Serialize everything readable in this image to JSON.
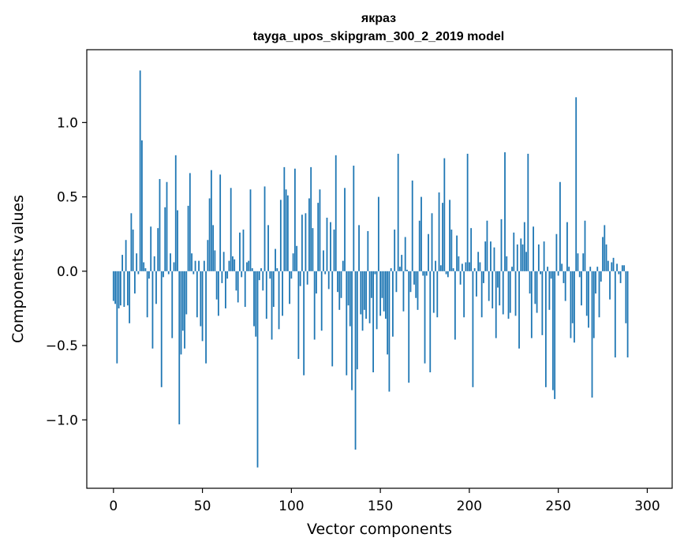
{
  "chart_data": {
    "type": "bar",
    "title": "якраз",
    "subtitle": "tayga_upos_skipgram_300_2_2019 model",
    "xlabel": "Vector components",
    "ylabel": "Components values",
    "xlim": [
      -15,
      314
    ],
    "ylim": [
      -1.46,
      1.49
    ],
    "xticks": [
      0,
      50,
      100,
      150,
      200,
      250,
      300
    ],
    "yticks": [
      -1.0,
      -0.5,
      0.0,
      0.5,
      1.0
    ],
    "ytick_labels": [
      "−1.0",
      "−0.5",
      "0.0",
      "0.5",
      "1.0"
    ],
    "bar_color": "#1f77b4",
    "values": [
      -0.2,
      -0.22,
      -0.62,
      -0.25,
      -0.23,
      0.11,
      -0.24,
      0.21,
      -0.23,
      -0.35,
      0.39,
      0.28,
      -0.15,
      0.12,
      -0.02,
      1.35,
      0.88,
      0.06,
      0.02,
      -0.31,
      -0.05,
      0.3,
      -0.52,
      0.1,
      -0.22,
      0.29,
      0.62,
      -0.78,
      -0.04,
      0.43,
      0.6,
      -0.02,
      0.12,
      -0.45,
      0.06,
      0.78,
      0.41,
      -1.03,
      -0.56,
      -0.4,
      -0.52,
      -0.29,
      0.44,
      0.66,
      0.12,
      -0.02,
      0.07,
      -0.31,
      0.07,
      -0.37,
      -0.47,
      0.07,
      -0.62,
      0.21,
      0.49,
      0.68,
      0.31,
      0.14,
      -0.19,
      -0.3,
      0.65,
      -0.08,
      0.13,
      -0.25,
      -0.05,
      0.07,
      0.56,
      0.1,
      0.08,
      -0.13,
      -0.21,
      0.26,
      -0.04,
      0.28,
      -0.24,
      0.06,
      0.07,
      0.55,
      0.02,
      -0.37,
      -0.44,
      -1.32,
      -0.06,
      0.02,
      -0.13,
      0.57,
      -0.32,
      0.31,
      -0.05,
      -0.46,
      -0.24,
      0.15,
      0.02,
      -0.39,
      0.48,
      -0.3,
      0.7,
      0.55,
      0.51,
      -0.22,
      -0.05,
      0.12,
      0.69,
      0.17,
      -0.59,
      -0.1,
      0.38,
      -0.7,
      0.39,
      -0.09,
      0.49,
      0.7,
      0.29,
      -0.46,
      -0.15,
      0.46,
      0.55,
      -0.4,
      0.14,
      -0.02,
      0.36,
      -0.12,
      0.33,
      -0.64,
      0.28,
      0.78,
      -0.14,
      -0.26,
      -0.18,
      0.07,
      0.56,
      -0.7,
      -0.23,
      -0.37,
      -0.8,
      0.71,
      -1.2,
      -0.66,
      0.31,
      -0.29,
      -0.4,
      -0.26,
      -0.32,
      0.27,
      -0.35,
      -0.18,
      -0.68,
      -0.02,
      -0.39,
      0.5,
      -0.3,
      -0.18,
      -0.27,
      -0.32,
      -0.56,
      -0.81,
      0.02,
      -0.44,
      0.28,
      -0.14,
      0.79,
      0.03,
      0.11,
      -0.27,
      0.23,
      0.01,
      -0.75,
      -0.14,
      0.61,
      -0.09,
      -0.18,
      -0.26,
      0.34,
      0.5,
      -0.03,
      -0.62,
      -0.03,
      0.25,
      -0.68,
      0.39,
      -0.28,
      0.07,
      -0.31,
      0.53,
      0.04,
      0.46,
      0.76,
      -0.02,
      -0.04,
      0.48,
      0.28,
      0.02,
      -0.46,
      0.24,
      0.1,
      -0.09,
      0.05,
      -0.31,
      0.06,
      0.79,
      0.06,
      0.29,
      -0.78,
      0.02,
      -0.17,
      0.13,
      0.06,
      -0.31,
      -0.08,
      0.2,
      0.34,
      -0.2,
      0.2,
      -0.25,
      0.16,
      -0.45,
      -0.11,
      -0.23,
      0.35,
      -0.29,
      0.8,
      0.1,
      -0.32,
      -0.28,
      0.03,
      0.26,
      -0.3,
      0.18,
      -0.52,
      0.22,
      0.18,
      0.33,
      0.13,
      0.79,
      -0.15,
      -0.45,
      0.3,
      -0.22,
      -0.28,
      0.18,
      -0.02,
      -0.43,
      0.2,
      -0.78,
      0.03,
      -0.26,
      -0.05,
      -0.8,
      -0.86,
      0.25,
      -0.03,
      0.6,
      0.05,
      -0.08,
      -0.2,
      0.33,
      0.03,
      -0.45,
      -0.35,
      -0.48,
      1.17,
      0.12,
      -0.04,
      -0.23,
      0.12,
      0.34,
      -0.3,
      -0.38,
      0.03,
      -0.85,
      -0.45,
      -0.15,
      0.03,
      -0.31,
      -0.07,
      0.23,
      0.31,
      0.18,
      0.07,
      -0.19,
      0.06,
      0.09,
      -0.58,
      0.05,
      -0.02,
      -0.08,
      0.04,
      0.04,
      -0.35,
      -0.58
    ]
  }
}
